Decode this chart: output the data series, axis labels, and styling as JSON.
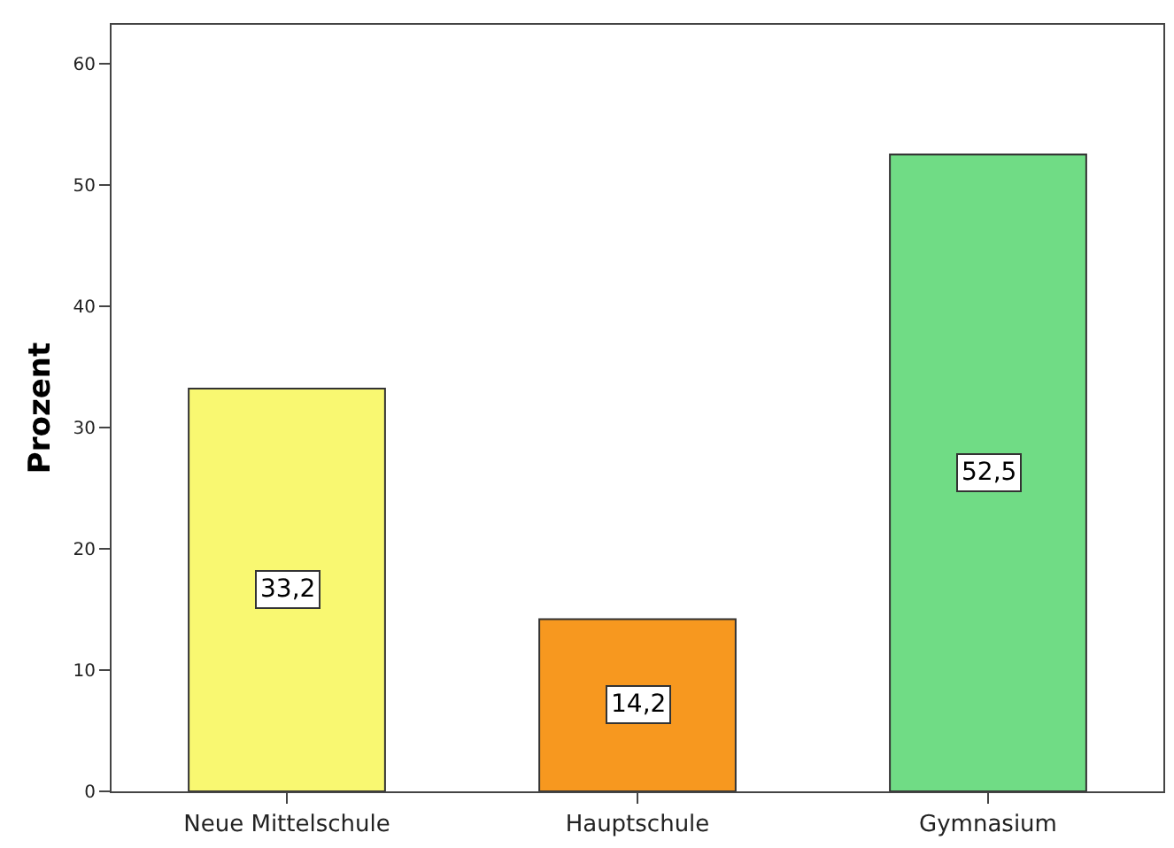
{
  "chart_data": {
    "type": "bar",
    "ylabel": "Prozent",
    "categories": [
      "Neue Mittelschule",
      "Hauptschule",
      "Gymnasium"
    ],
    "values": [
      33.2,
      14.2,
      52.5
    ],
    "colors": [
      "#f9f871",
      "#f7981f",
      "#70dc85"
    ],
    "value_labels": [
      "33,2",
      "14,2",
      "52,5"
    ],
    "ylim": [
      0,
      63.2
    ],
    "yticks": [
      0,
      10,
      20,
      30,
      40,
      50,
      60
    ]
  }
}
